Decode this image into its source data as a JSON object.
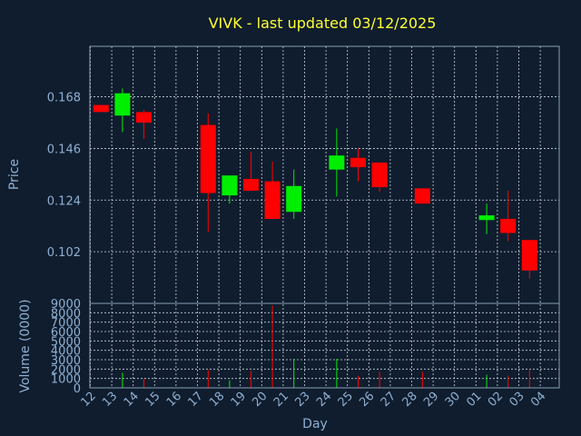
{
  "chart_data": {
    "type": "candlestick",
    "title": "VIVK - last updated 03/12/2025",
    "price_panel": {
      "ylabel": "Price",
      "ylim": [
        0.08,
        0.1895
      ],
      "yticks": [
        0.102,
        0.124,
        0.146,
        0.168
      ],
      "ytick_labels": [
        "0.102",
        "0.124",
        "0.146",
        "0.168"
      ]
    },
    "volume_panel": {
      "ylabel": "Volume (0000)",
      "ylim": [
        0,
        9000
      ],
      "yticks": [
        0,
        1000,
        2000,
        3000,
        4000,
        5000,
        6000,
        7000,
        8000,
        9000
      ],
      "ytick_labels": [
        "0",
        "1000",
        "2000",
        "3000",
        "4000",
        "5000",
        "6000",
        "7000",
        "8000",
        "9000"
      ]
    },
    "xlabel": "Day",
    "x_labels": [
      "12",
      "13",
      "14",
      "15",
      "16",
      "17",
      "18",
      "19",
      "20",
      "21",
      "23",
      "24",
      "25",
      "26",
      "27",
      "28",
      "29",
      "30",
      "01",
      "02",
      "03",
      "04"
    ],
    "colors": {
      "up": "#00ee00",
      "down": "#ff0000"
    },
    "candles": [
      {
        "day": "12",
        "open": 0.1645,
        "high": 0.1645,
        "low": 0.1615,
        "close": 0.1615,
        "volume": 0
      },
      {
        "day": "13",
        "open": 0.16,
        "high": 0.1715,
        "low": 0.153,
        "close": 0.1695,
        "volume": 1600
      },
      {
        "day": "14",
        "open": 0.1615,
        "high": 0.1625,
        "low": 0.15,
        "close": 0.157,
        "volume": 1000
      },
      {
        "day": "17",
        "open": 0.156,
        "high": 0.161,
        "low": 0.1105,
        "close": 0.127,
        "volume": 1900
      },
      {
        "day": "18",
        "open": 0.126,
        "high": 0.1345,
        "low": 0.1225,
        "close": 0.1345,
        "volume": 800
      },
      {
        "day": "19",
        "open": 0.133,
        "high": 0.1445,
        "low": 0.128,
        "close": 0.128,
        "volume": 1800
      },
      {
        "day": "20",
        "open": 0.132,
        "high": 0.1405,
        "low": 0.116,
        "close": 0.116,
        "volume": 8800
      },
      {
        "day": "21",
        "open": 0.119,
        "high": 0.137,
        "low": 0.116,
        "close": 0.13,
        "volume": 3100
      },
      {
        "day": "24",
        "open": 0.137,
        "high": 0.1545,
        "low": 0.1255,
        "close": 0.143,
        "volume": 3100
      },
      {
        "day": "25",
        "open": 0.142,
        "high": 0.146,
        "low": 0.132,
        "close": 0.138,
        "volume": 1300
      },
      {
        "day": "26",
        "open": 0.14,
        "high": 0.14,
        "low": 0.1275,
        "close": 0.1295,
        "volume": 1700
      },
      {
        "day": "28",
        "open": 0.129,
        "high": 0.129,
        "low": 0.1225,
        "close": 0.1225,
        "volume": 1700
      },
      {
        "day": "01",
        "open": 0.1155,
        "high": 0.1225,
        "low": 0.1095,
        "close": 0.1175,
        "volume": 1400
      },
      {
        "day": "02",
        "open": 0.116,
        "high": 0.128,
        "low": 0.1065,
        "close": 0.11,
        "volume": 1300
      },
      {
        "day": "03",
        "open": 0.107,
        "high": 0.107,
        "low": 0.0905,
        "close": 0.094,
        "volume": 2000
      }
    ]
  }
}
